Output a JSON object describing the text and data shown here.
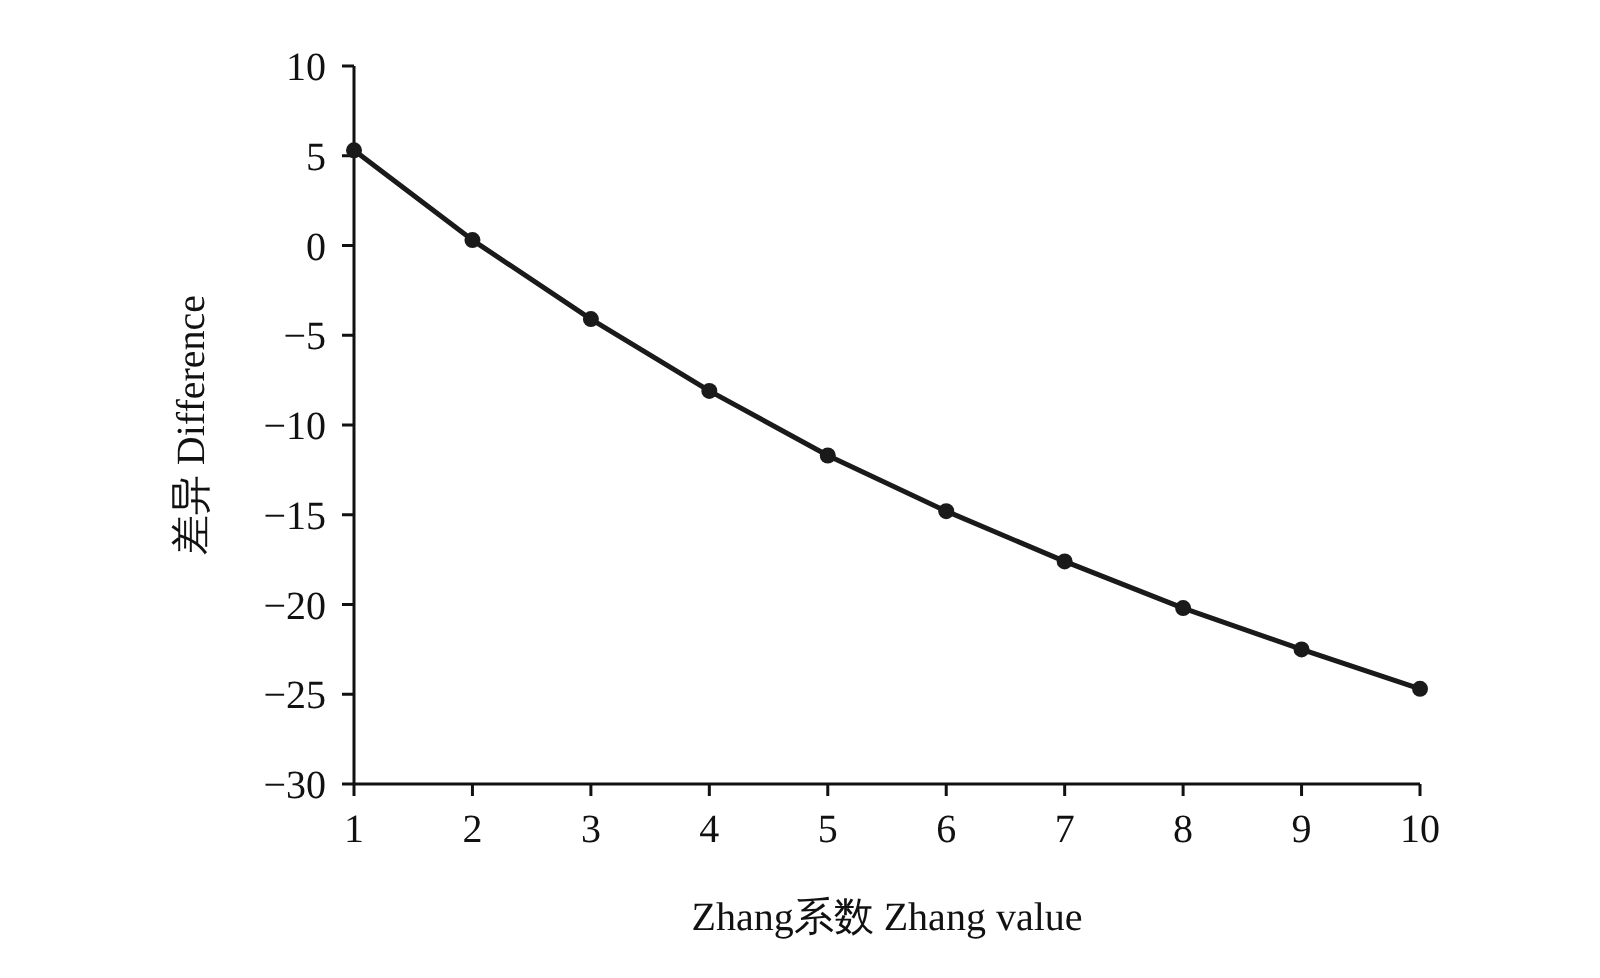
{
  "chart_data": {
    "type": "line",
    "xlabel": "Zhang系数 Zhang value",
    "ylabel": "差异 Difference",
    "x": [
      1,
      2,
      3,
      4,
      5,
      6,
      7,
      8,
      9,
      10
    ],
    "series": [
      {
        "color": "#1a1a1a",
        "values": [
          5.3,
          0.3,
          -4.1,
          -8.1,
          -11.7,
          -14.8,
          -17.6,
          -20.2,
          -22.5,
          -24.7
        ]
      }
    ],
    "xlim": [
      1,
      10
    ],
    "ylim": [
      -30,
      10
    ],
    "xticks": [
      1,
      2,
      3,
      4,
      5,
      6,
      7,
      8,
      9,
      10
    ],
    "yticks": [
      -30,
      -25,
      -20,
      -15,
      -10,
      -5,
      0,
      5,
      10
    ],
    "marker": "circle"
  }
}
